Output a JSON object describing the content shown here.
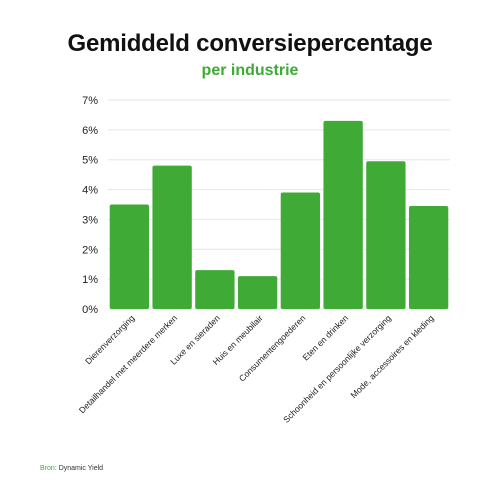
{
  "title": "Gemiddeld conversiepercentage",
  "subtitle": "per industrie",
  "source": {
    "label": "Bron:",
    "text": "Dynamic Yield"
  },
  "colors": {
    "bar": "#3faa35",
    "accent": "#3faa35",
    "grid": "#e6e6e6",
    "text": "#222222"
  },
  "chart_data": {
    "type": "bar",
    "categories": [
      "Dierenverzorging",
      "Detailhandel met meerdere merken",
      "Luxe en sieraden",
      "Huis en meubilair",
      "Consumentengoederen",
      "Eten en drinken",
      "Schoonheid en persoonlijke verzorging",
      "Mode, accessoires en kleding"
    ],
    "values": [
      3.5,
      4.8,
      1.3,
      1.1,
      3.9,
      6.3,
      4.95,
      3.45
    ],
    "title": "Gemiddeld conversiepercentage",
    "subtitle": "per industrie",
    "xlabel": "",
    "ylabel": "",
    "ylim": [
      0,
      7
    ],
    "yticks": [
      "0%",
      "1%",
      "2%",
      "3%",
      "4%",
      "5%",
      "6%",
      "7%"
    ],
    "grid": true,
    "legend": "none"
  }
}
